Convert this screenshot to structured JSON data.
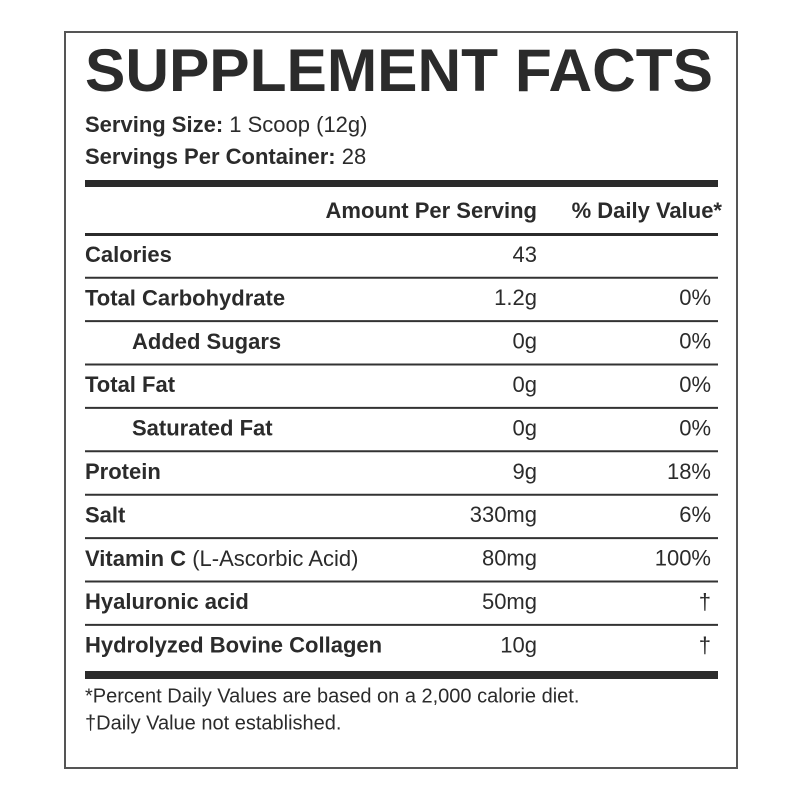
{
  "title": "SUPPLEMENT FACTS",
  "serving": [
    {
      "label": "Serving Size:",
      "value": "1 Scoop (12g)"
    },
    {
      "label": "Servings Per Container:",
      "value": "28"
    }
  ],
  "table": {
    "header": [
      "Amount Per Serving",
      "% Daily Value*"
    ],
    "rows": [
      {
        "name": "Calories",
        "amount": "43"
      },
      {
        "name": "Total Carbohydrate",
        "amount": "1.2g",
        "dv": "0%"
      },
      {
        "name": "Added Sugars",
        "amount": "0g",
        "dv": "0%"
      },
      {
        "name": "Total Fat",
        "amount": "0g",
        "dv": "0%"
      },
      {
        "name": "Saturated Fat",
        "amount": "0g",
        "dv": "0%"
      },
      {
        "name": "Protein",
        "amount": "9g",
        "dv": "18%"
      },
      {
        "name": "Salt",
        "amount": "330mg",
        "dv": "6%"
      },
      {
        "name": "Vitamin C",
        "note": "(L-Ascorbic Acid)",
        "amount": "80mg",
        "dv": "100%"
      },
      {
        "name": "Hyaluronic acid",
        "amount": "50mg",
        "dv": "†"
      },
      {
        "name": "Hydrolyzed Bovine Collagen",
        "amount": "10g",
        "dv": "†"
      }
    ]
  },
  "footnotes": [
    "*Percent Daily Values are based on a 2,000 calorie diet.",
    "†Daily Value not established."
  ]
}
